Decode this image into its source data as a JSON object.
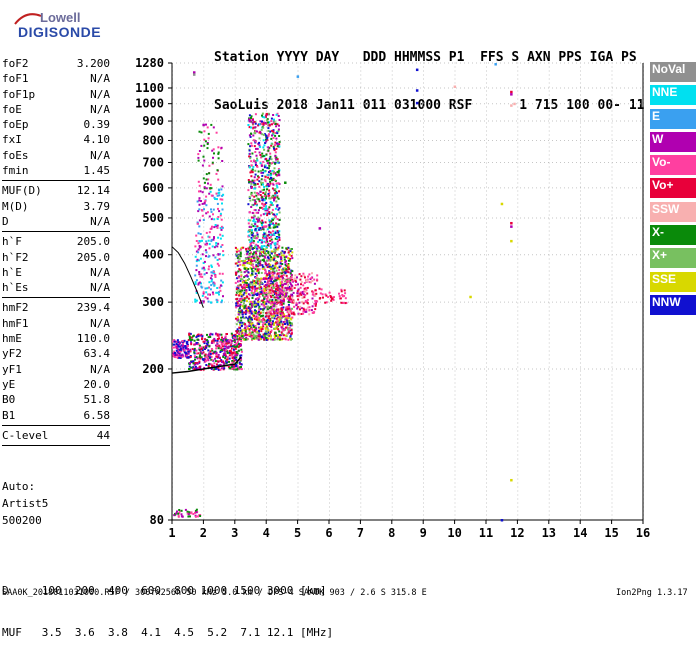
{
  "logo": {
    "top": "Lowell",
    "bottom": "DIGISONDE"
  },
  "header": {
    "line1": "Station YYYY DAY   DDD HHMMSS P1  FFS S AXN PPS IGA PS",
    "line2": "SaoLuis 2018 Jan11 011 031000 RSF      1 715 100 00- 11"
  },
  "params": [
    {
      "k": "foF2",
      "v": "3.200"
    },
    {
      "k": "foF1",
      "v": "N/A"
    },
    {
      "k": "foF1p",
      "v": "N/A"
    },
    {
      "k": "foE",
      "v": "N/A"
    },
    {
      "k": "foEp",
      "v": "0.39"
    },
    {
      "k": "fxI",
      "v": "4.10"
    },
    {
      "k": "foEs",
      "v": "N/A"
    },
    {
      "k": "fmin",
      "v": "1.45"
    },
    {
      "sep": true
    },
    {
      "k": "MUF(D)",
      "v": "12.14"
    },
    {
      "k": "M(D)",
      "v": "3.79"
    },
    {
      "k": "D",
      "v": "N/A"
    },
    {
      "sep": true
    },
    {
      "k": "h`F",
      "v": "205.0"
    },
    {
      "k": "h`F2",
      "v": "205.0"
    },
    {
      "k": "h`E",
      "v": "N/A"
    },
    {
      "k": "h`Es",
      "v": "N/A"
    },
    {
      "sep": true
    },
    {
      "k": "hmF2",
      "v": "239.4"
    },
    {
      "k": "hmF1",
      "v": "N/A"
    },
    {
      "k": "hmE",
      "v": "110.0"
    },
    {
      "k": "yF2",
      "v": "63.4"
    },
    {
      "k": "yF1",
      "v": "N/A"
    },
    {
      "k": "yE",
      "v": "20.0"
    },
    {
      "k": "B0",
      "v": "51.8"
    },
    {
      "k": "B1",
      "v": "6.58"
    },
    {
      "sep": true
    },
    {
      "k": "C-level",
      "v": "44"
    },
    {
      "sep": true
    }
  ],
  "auto": {
    "l1": "Auto:",
    "l2": "Artist5",
    "l3": "500200"
  },
  "legend": [
    {
      "label": "NoVal",
      "color": "#909090"
    },
    {
      "label": "NNE",
      "color": "#00e0f0"
    },
    {
      "label": "E",
      "color": "#3aa0f0"
    },
    {
      "label": "W",
      "color": "#b000b0"
    },
    {
      "label": "Vo-",
      "color": "#ff3fa0"
    },
    {
      "label": "Vo+",
      "color": "#e8003a"
    },
    {
      "label": "SSW",
      "color": "#f8b0b0"
    },
    {
      "label": "X-",
      "color": "#0a8a0a"
    },
    {
      "label": "X+",
      "color": "#78c060"
    },
    {
      "label": "SSE",
      "color": "#d8d800"
    },
    {
      "label": "NNW",
      "color": "#1010d0"
    }
  ],
  "dmuf": {
    "line1": "D     100  200  400  600  800 1000 1500 3000 [km]",
    "line2": "MUF   3.5  3.6  3.8  4.1  4.5  5.2  7.1 12.1 [MHz]"
  },
  "footer": "SAA0K_2018011031000.RSF / 300fx256h 50 kHz 5.0 km / DPS-4 SAA0K 903 / 2.6 S 315.8 E",
  "version": "Ion2Png 1.3.17",
  "chart_data": {
    "type": "scatter",
    "xlim": [
      1,
      16
    ],
    "ylim": [
      80,
      1280
    ],
    "y_scale": "log",
    "x_ticks": [
      1,
      2,
      3,
      4,
      5,
      6,
      7,
      8,
      9,
      10,
      11,
      12,
      13,
      14,
      15,
      16
    ],
    "y_ticks": [
      80,
      200,
      300,
      400,
      500,
      600,
      700,
      800,
      900,
      1000,
      1100,
      1280
    ],
    "x_ticks_labels": [
      "1",
      "2",
      "3",
      "4",
      "5",
      "6",
      "7",
      "8",
      "9",
      "10",
      "11",
      "12",
      "13",
      "14",
      "15",
      "16"
    ],
    "y_ticks_labels": [
      "80",
      "200",
      "300",
      "400",
      "500",
      "600",
      "700",
      "800",
      "900",
      "1000",
      "1100",
      "1280"
    ],
    "traces": {
      "o_trace": [
        [
          1.0,
          195
        ],
        [
          1.5,
          197
        ],
        [
          2.0,
          200
        ],
        [
          2.5,
          203
        ],
        [
          3.0,
          206
        ],
        [
          3.2,
          215
        ]
      ],
      "profile": [
        [
          1.0,
          420
        ],
        [
          1.2,
          405
        ],
        [
          1.4,
          380
        ],
        [
          1.6,
          350
        ],
        [
          1.8,
          320
        ],
        [
          2.0,
          290
        ]
      ]
    },
    "clusters": [
      {
        "x": [
          1.0,
          1.5
        ],
        "y": [
          215,
          240
        ],
        "n": 120,
        "colors": [
          "#ff3fa0",
          "#b000b0",
          "#1010d0"
        ]
      },
      {
        "x": [
          1.5,
          3.2
        ],
        "y": [
          200,
          250
        ],
        "n": 500,
        "colors": [
          "#ff3fa0",
          "#b000b0",
          "#1010d0",
          "#0a8a0a",
          "#e8003a"
        ]
      },
      {
        "x": [
          3.0,
          4.8
        ],
        "y": [
          240,
          420
        ],
        "n": 1400,
        "colors": [
          "#ff3fa0",
          "#b000b0",
          "#1010d0",
          "#e8003a",
          "#0a8a0a",
          "#78c060",
          "#d8d800"
        ]
      },
      {
        "x": [
          4.0,
          5.6
        ],
        "y": [
          280,
          360
        ],
        "n": 300,
        "colors": [
          "#ff3fa0",
          "#e8003a",
          "#b000b0",
          "#f8b0b0"
        ]
      },
      {
        "x": [
          5.5,
          6.6
        ],
        "y": [
          300,
          330
        ],
        "n": 40,
        "colors": [
          "#ff3fa0",
          "#e8003a"
        ]
      },
      {
        "x": [
          3.4,
          4.4
        ],
        "y": [
          420,
          950
        ],
        "n": 700,
        "colors": [
          "#0a8a0a",
          "#b000b0",
          "#ff3fa0",
          "#1010d0",
          "#e8003a",
          "#78c060",
          "#00e0f0"
        ]
      },
      {
        "x": [
          1.7,
          2.6
        ],
        "y": [
          300,
          600
        ],
        "n": 240,
        "colors": [
          "#00e0f0",
          "#3aa0f0",
          "#ff3fa0",
          "#b000b0"
        ]
      },
      {
        "x": [
          1.8,
          2.6
        ],
        "y": [
          600,
          900
        ],
        "n": 60,
        "colors": [
          "#b000b0",
          "#ff3fa0",
          "#0a8a0a"
        ]
      },
      {
        "x": [
          1.0,
          1.9
        ],
        "y": [
          82,
          86
        ],
        "n": 40,
        "colors": [
          "#ff3fa0",
          "#0a8a0a",
          "#b000b0"
        ]
      }
    ],
    "points": [
      {
        "x": 8.8,
        "y": 1230,
        "c": "#1010d0"
      },
      {
        "x": 8.8,
        "y": 1085,
        "c": "#1010d0"
      },
      {
        "x": 8.8,
        "y": 1005,
        "c": "#1010d0"
      },
      {
        "x": 11.3,
        "y": 1272,
        "c": "#3aa0f0"
      },
      {
        "x": 10.0,
        "y": 1110,
        "c": "#f8b0b0"
      },
      {
        "x": 11.8,
        "y": 1075,
        "c": "#e8003a"
      },
      {
        "x": 11.8,
        "y": 1060,
        "c": "#b000b0"
      },
      {
        "x": 11.9,
        "y": 1000,
        "c": "#f8b0b0"
      },
      {
        "x": 11.8,
        "y": 990,
        "c": "#f8b0b0"
      },
      {
        "x": 11.8,
        "y": 485,
        "c": "#e8003a"
      },
      {
        "x": 11.8,
        "y": 475,
        "c": "#b000b0"
      },
      {
        "x": 11.8,
        "y": 435,
        "c": "#d8d800"
      },
      {
        "x": 11.5,
        "y": 545,
        "c": "#d8d800"
      },
      {
        "x": 10.5,
        "y": 310,
        "c": "#d8d800"
      },
      {
        "x": 11.8,
        "y": 102,
        "c": "#d8d800"
      },
      {
        "x": 11.5,
        "y": 80,
        "c": "#1010d0"
      },
      {
        "x": 1.7,
        "y": 1210,
        "c": "#b000b0"
      },
      {
        "x": 1.7,
        "y": 1195,
        "c": "#909090"
      },
      {
        "x": 2.0,
        "y": 880,
        "c": "#b000b0"
      },
      {
        "x": 5.7,
        "y": 470,
        "c": "#b000b0"
      },
      {
        "x": 4.6,
        "y": 620,
        "c": "#0a8a0a"
      },
      {
        "x": 4.4,
        "y": 650,
        "c": "#b000b0"
      },
      {
        "x": 5.0,
        "y": 1180,
        "c": "#3aa0f0"
      }
    ]
  }
}
